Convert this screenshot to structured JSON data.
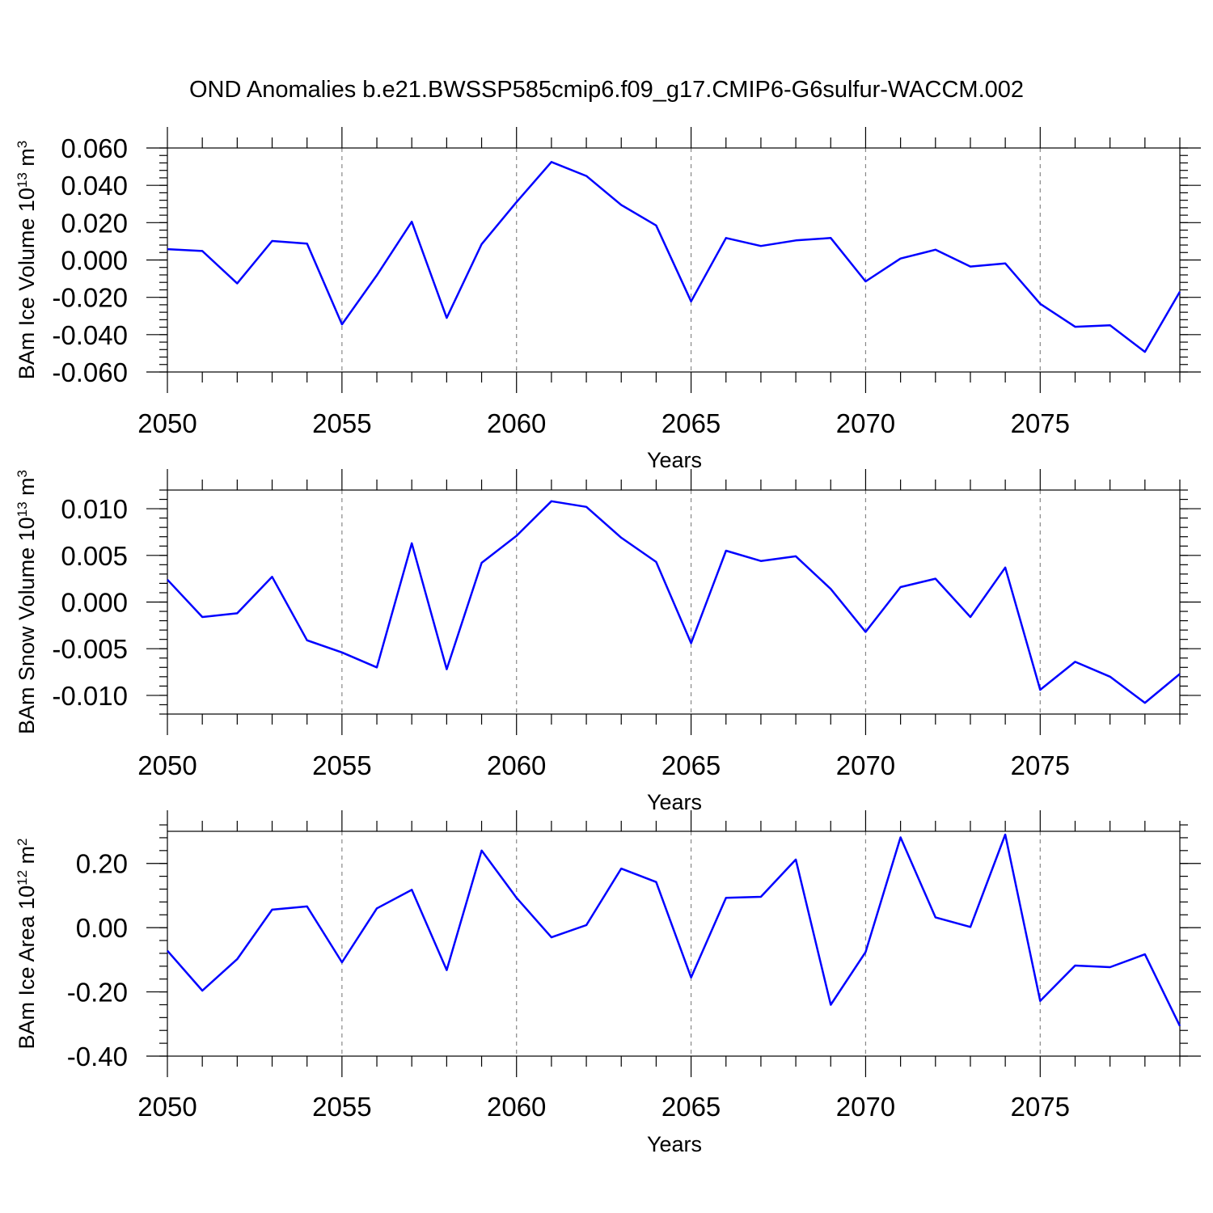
{
  "title": "OND Anomalies b.e21.BWSSP585cmip6.f09_g17.CMIP6-G6sulfur-WACCM.002",
  "colors": {
    "line": "#0000ff",
    "grid": "#888888",
    "frame": "#000000"
  },
  "chart_data": [
    {
      "type": "line",
      "xlabel": "Years",
      "ylabel": {
        "prefix": "BAm Ice Volume 10",
        "exponent": "13",
        "unit": " m",
        "unit_exponent": "3"
      },
      "xlim": [
        2050,
        2079
      ],
      "ylim": [
        -0.06,
        0.06
      ],
      "xticks": [
        2050,
        2055,
        2060,
        2065,
        2070,
        2075
      ],
      "xtick_labels": [
        "2050",
        "2055",
        "2060",
        "2065",
        "2070",
        "2075"
      ],
      "yticks": [
        -0.06,
        -0.04,
        -0.02,
        0.0,
        0.02,
        0.04,
        0.06
      ],
      "ytick_labels": [
        "-0.060",
        "-0.040",
        "-0.020",
        "0.000",
        "0.020",
        "0.040",
        "0.060"
      ],
      "grid_x": "dashed at major x ticks",
      "x": [
        2050,
        2051,
        2052,
        2053,
        2054,
        2055,
        2056,
        2057,
        2058,
        2059,
        2060,
        2061,
        2062,
        2063,
        2064,
        2065,
        2066,
        2067,
        2068,
        2069,
        2070,
        2071,
        2072,
        2073,
        2074,
        2075,
        2076,
        2077,
        2078,
        2079
      ],
      "series": [
        {
          "values": [
            0.0058,
            0.0048,
            -0.0125,
            0.0102,
            0.0088,
            -0.0345,
            -0.0082,
            0.0205,
            -0.031,
            0.0085,
            0.031,
            0.0525,
            0.045,
            0.0295,
            0.0185,
            -0.0222,
            0.0118,
            0.0075,
            0.0105,
            0.0118,
            -0.0115,
            0.0008,
            0.0055,
            -0.0035,
            -0.0018,
            -0.0235,
            -0.0358,
            -0.035,
            -0.0492,
            -0.017
          ]
        }
      ]
    },
    {
      "type": "line",
      "xlabel": "Years",
      "ylabel": {
        "prefix": "BAm Snow Volume 10",
        "exponent": "13",
        "unit": " m",
        "unit_exponent": "3"
      },
      "xlim": [
        2050,
        2079
      ],
      "ylim": [
        -0.012,
        0.012
      ],
      "xticks": [
        2050,
        2055,
        2060,
        2065,
        2070,
        2075
      ],
      "xtick_labels": [
        "2050",
        "2055",
        "2060",
        "2065",
        "2070",
        "2075"
      ],
      "yticks": [
        -0.01,
        -0.005,
        0.0,
        0.005,
        0.01
      ],
      "ytick_labels": [
        "-0.010",
        "-0.005",
        "0.000",
        "0.005",
        "0.010"
      ],
      "grid_x": "dashed at major x ticks",
      "x": [
        2050,
        2051,
        2052,
        2053,
        2054,
        2055,
        2056,
        2057,
        2058,
        2059,
        2060,
        2061,
        2062,
        2063,
        2064,
        2065,
        2066,
        2067,
        2068,
        2069,
        2070,
        2071,
        2072,
        2073,
        2074,
        2075,
        2076,
        2077,
        2078,
        2079
      ],
      "series": [
        {
          "values": [
            0.0024,
            -0.0016,
            -0.0012,
            0.0027,
            -0.0041,
            -0.0054,
            -0.007,
            0.0063,
            -0.0072,
            0.0042,
            0.0071,
            0.0108,
            0.0102,
            0.0069,
            0.0043,
            -0.0044,
            0.0055,
            0.0044,
            0.0049,
            0.0014,
            -0.0032,
            0.0016,
            0.0025,
            -0.0016,
            0.0037,
            -0.0094,
            -0.0064,
            -0.008,
            -0.0108,
            -0.0077
          ]
        }
      ]
    },
    {
      "type": "line",
      "xlabel": "Years",
      "ylabel": {
        "prefix": "BAm Ice Area 10",
        "exponent": "12",
        "unit": " m",
        "unit_exponent": "2"
      },
      "xlim": [
        2050,
        2079
      ],
      "ylim": [
        -0.4,
        0.3
      ],
      "xticks": [
        2050,
        2055,
        2060,
        2065,
        2070,
        2075
      ],
      "xtick_labels": [
        "2050",
        "2055",
        "2060",
        "2065",
        "2070",
        "2075"
      ],
      "yticks": [
        -0.4,
        -0.2,
        0.0,
        0.2
      ],
      "ytick_labels": [
        "-0.40",
        "-0.20",
        "0.00",
        "0.20"
      ],
      "grid_x": "dashed at major x ticks",
      "x": [
        2050,
        2051,
        2052,
        2053,
        2054,
        2055,
        2056,
        2057,
        2058,
        2059,
        2060,
        2061,
        2062,
        2063,
        2064,
        2065,
        2066,
        2067,
        2068,
        2069,
        2070,
        2071,
        2072,
        2073,
        2074,
        2075,
        2076,
        2077,
        2078,
        2079
      ],
      "series": [
        {
          "values": [
            -0.072,
            -0.196,
            -0.098,
            0.056,
            0.066,
            -0.108,
            0.06,
            0.118,
            -0.132,
            0.24,
            0.093,
            -0.03,
            0.008,
            0.184,
            0.142,
            -0.155,
            0.093,
            0.096,
            0.212,
            -0.24,
            -0.076,
            0.281,
            0.032,
            0.002,
            0.29,
            -0.228,
            -0.118,
            -0.123,
            -0.083,
            -0.306
          ]
        }
      ]
    }
  ]
}
